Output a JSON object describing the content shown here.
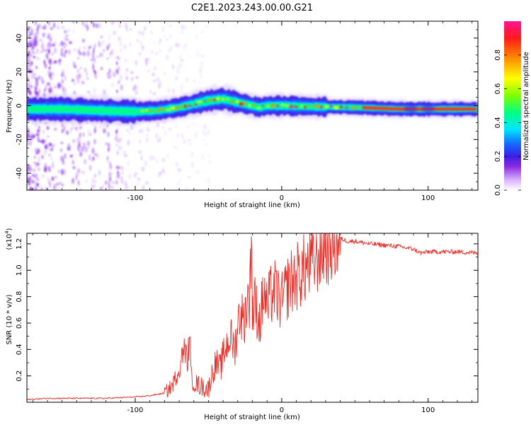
{
  "title": "C2E1.2023.243.00.00.G21",
  "chart_data": [
    {
      "type": "heatmap",
      "xlabel": "Height of straight line (km)",
      "ylabel": "Frequency (Hz)",
      "xlim": [
        -174,
        134
      ],
      "ylim": [
        -50,
        50
      ],
      "xticks": [
        -100,
        0,
        100
      ],
      "yticks": [
        -40,
        -20,
        0,
        20,
        40
      ],
      "colorbar": {
        "label": "Normalized spectral amplitude",
        "range": [
          0,
          1
        ],
        "ticks": [
          0.0,
          0.2,
          0.4,
          0.6,
          0.8
        ],
        "colormap": [
          "#ffffff",
          "#d9b3ff",
          "#8a2be2",
          "#3c1ee6",
          "#1565ff",
          "#00e5ff",
          "#00ff7f",
          "#7fff00",
          "#ffff00",
          "#ff8c00",
          "#ff1a1a",
          "#ff1493"
        ]
      },
      "ridge": {
        "x": [
          -174,
          -150,
          -120,
          -100,
          -85,
          -70,
          -60,
          -50,
          -40,
          -30,
          -20,
          -15,
          -10,
          0,
          20,
          50,
          80,
          100,
          134
        ],
        "y": [
          -2,
          -2,
          -3,
          -3.5,
          -3,
          -1,
          1,
          3,
          4,
          2,
          0,
          -1,
          0,
          0,
          -0.5,
          -1,
          -2,
          -2,
          -2
        ]
      }
    },
    {
      "type": "line",
      "xlabel": "Height of straight line (km)",
      "ylabel": "SNR (10 * v/v)",
      "y_multiplier": "(x10^4)",
      "xlim": [
        -174,
        134
      ],
      "ylim": [
        0,
        1.28
      ],
      "xticks": [
        -100,
        0,
        100
      ],
      "yticks": [
        0.2,
        0.4,
        0.6,
        0.8,
        1.0,
        1.2
      ],
      "color": "#e8302a",
      "series": [
        {
          "x": [
            -174,
            -160,
            -140,
            -120,
            -100,
            -90,
            -80,
            -75,
            -70,
            -67,
            -65,
            -62,
            -60,
            -55,
            -50,
            -48,
            -45,
            -42,
            -40,
            -37,
            -35,
            -32,
            -30,
            -28,
            -26,
            -24,
            -22,
            -20,
            -18,
            -15,
            -12,
            -10,
            -8,
            -5,
            0,
            5,
            10,
            15,
            20,
            25,
            30,
            35,
            40,
            45,
            50,
            55,
            60,
            70,
            80,
            90,
            95,
            100,
            110,
            120,
            134
          ],
          "y": [
            0.02,
            0.03,
            0.03,
            0.03,
            0.04,
            0.05,
            0.07,
            0.12,
            0.25,
            0.4,
            0.35,
            0.2,
            0.15,
            0.12,
            0.1,
            0.2,
            0.3,
            0.25,
            0.35,
            0.45,
            0.5,
            0.4,
            0.6,
            0.7,
            0.6,
            0.75,
            0.8,
            0.7,
            0.75,
            0.6,
            0.85,
            0.7,
            0.8,
            0.85,
            0.75,
            0.9,
            0.95,
            1.0,
            1.05,
            1.12,
            1.18,
            1.22,
            1.24,
            1.22,
            1.22,
            1.21,
            1.2,
            1.19,
            1.18,
            1.16,
            1.13,
            1.14,
            1.14,
            1.14,
            1.13
          ]
        }
      ]
    }
  ]
}
